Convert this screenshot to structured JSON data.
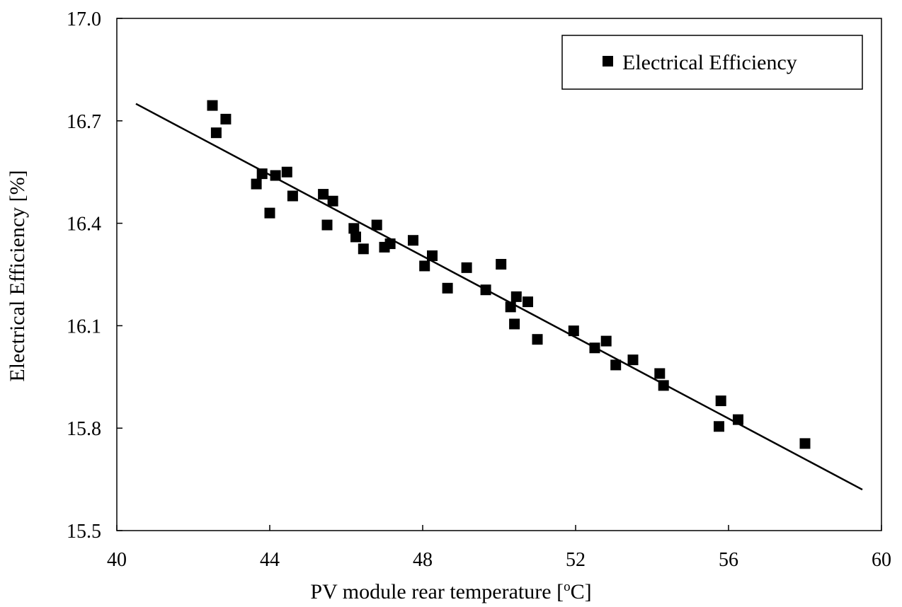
{
  "chart_data": {
    "type": "scatter",
    "title": "",
    "xlabel_main": "PV module rear temperature [",
    "xlabel_sup": "o",
    "xlabel_unit": "C]",
    "ylabel": "Electrical Efficiency [%]",
    "xlim": [
      40,
      60
    ],
    "ylim": [
      15.5,
      17.0
    ],
    "xticks": [
      "40",
      "44",
      "48",
      "52",
      "56",
      "60"
    ],
    "yticks": [
      "15.5",
      "15.8",
      "16.1",
      "16.4",
      "16.7",
      "17.0"
    ],
    "legend": {
      "label": "Electrical Efficiency",
      "position": "top-right"
    },
    "series": [
      {
        "name": "Electrical Efficiency",
        "marker": "square",
        "points": [
          [
            42.5,
            16.745
          ],
          [
            42.6,
            16.665
          ],
          [
            42.85,
            16.705
          ],
          [
            43.65,
            16.515
          ],
          [
            43.8,
            16.545
          ],
          [
            44.0,
            16.43
          ],
          [
            44.15,
            16.54
          ],
          [
            44.45,
            16.55
          ],
          [
            44.6,
            16.48
          ],
          [
            45.4,
            16.485
          ],
          [
            45.5,
            16.395
          ],
          [
            45.65,
            16.465
          ],
          [
            46.2,
            16.385
          ],
          [
            46.25,
            16.36
          ],
          [
            46.45,
            16.325
          ],
          [
            46.8,
            16.395
          ],
          [
            47.0,
            16.33
          ],
          [
            47.15,
            16.34
          ],
          [
            47.75,
            16.35
          ],
          [
            48.05,
            16.275
          ],
          [
            48.25,
            16.305
          ],
          [
            48.65,
            16.21
          ],
          [
            49.15,
            16.27
          ],
          [
            49.65,
            16.205
          ],
          [
            50.05,
            16.28
          ],
          [
            50.3,
            16.155
          ],
          [
            50.45,
            16.185
          ],
          [
            50.4,
            16.105
          ],
          [
            50.75,
            16.17
          ],
          [
            51.0,
            16.06
          ],
          [
            51.95,
            16.085
          ],
          [
            52.5,
            16.035
          ],
          [
            52.8,
            16.055
          ],
          [
            53.05,
            15.985
          ],
          [
            53.5,
            16.0
          ],
          [
            54.2,
            15.96
          ],
          [
            54.3,
            15.925
          ],
          [
            55.75,
            15.805
          ],
          [
            55.8,
            15.88
          ],
          [
            56.25,
            15.825
          ],
          [
            58.0,
            15.755
          ]
        ]
      }
    ],
    "trendline": {
      "x": [
        40.5,
        59.5
      ],
      "y": [
        16.75,
        15.62
      ]
    }
  }
}
